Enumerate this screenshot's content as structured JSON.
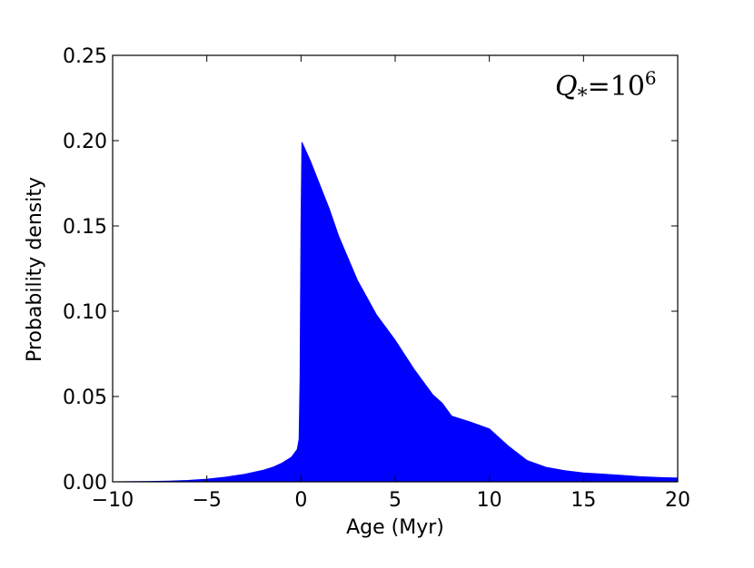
{
  "chart_data": {
    "type": "area",
    "title": "",
    "xlabel": "Age (Myr)",
    "ylabel": "Probability density",
    "xlim": [
      -10,
      20
    ],
    "ylim": [
      0,
      0.25
    ],
    "xticks": [
      -10,
      -5,
      0,
      5,
      10,
      15,
      20
    ],
    "xtick_labels": [
      "−10",
      "−5",
      "0",
      "5",
      "10",
      "15",
      "20"
    ],
    "yticks": [
      0,
      0.05,
      0.1,
      0.15,
      0.2,
      0.25
    ],
    "ytick_labels": [
      "0.00",
      "0.05",
      "0.10",
      "0.15",
      "0.20",
      "0.25"
    ],
    "grid": false,
    "fill_color": "#0000ff",
    "annotation": {
      "main": "Q",
      "sub": "*",
      "eq": "=10",
      "sup": "6"
    },
    "series": [
      {
        "x": [
          -10,
          -8,
          -7,
          -6,
          -5,
          -4,
          -3,
          -2,
          -1.5,
          -1,
          -0.5,
          -0.2,
          -0.1,
          -0.05,
          0,
          0.05,
          0.5,
          1,
          1.5,
          2,
          3,
          4,
          5,
          6,
          7,
          7.5,
          8,
          9,
          10,
          11,
          12,
          13,
          14,
          15,
          16,
          17,
          18,
          19,
          20
        ],
        "y": [
          0,
          0.0002,
          0.0004,
          0.0008,
          0.0015,
          0.0027,
          0.0044,
          0.0068,
          0.0085,
          0.011,
          0.0145,
          0.019,
          0.025,
          0.06,
          0.15,
          0.199,
          0.188,
          0.174,
          0.16,
          0.144,
          0.118,
          0.098,
          0.083,
          0.066,
          0.051,
          0.046,
          0.0385,
          0.035,
          0.031,
          0.021,
          0.0125,
          0.0085,
          0.0065,
          0.0052,
          0.0045,
          0.0038,
          0.003,
          0.0025,
          0.0022
        ]
      }
    ]
  }
}
